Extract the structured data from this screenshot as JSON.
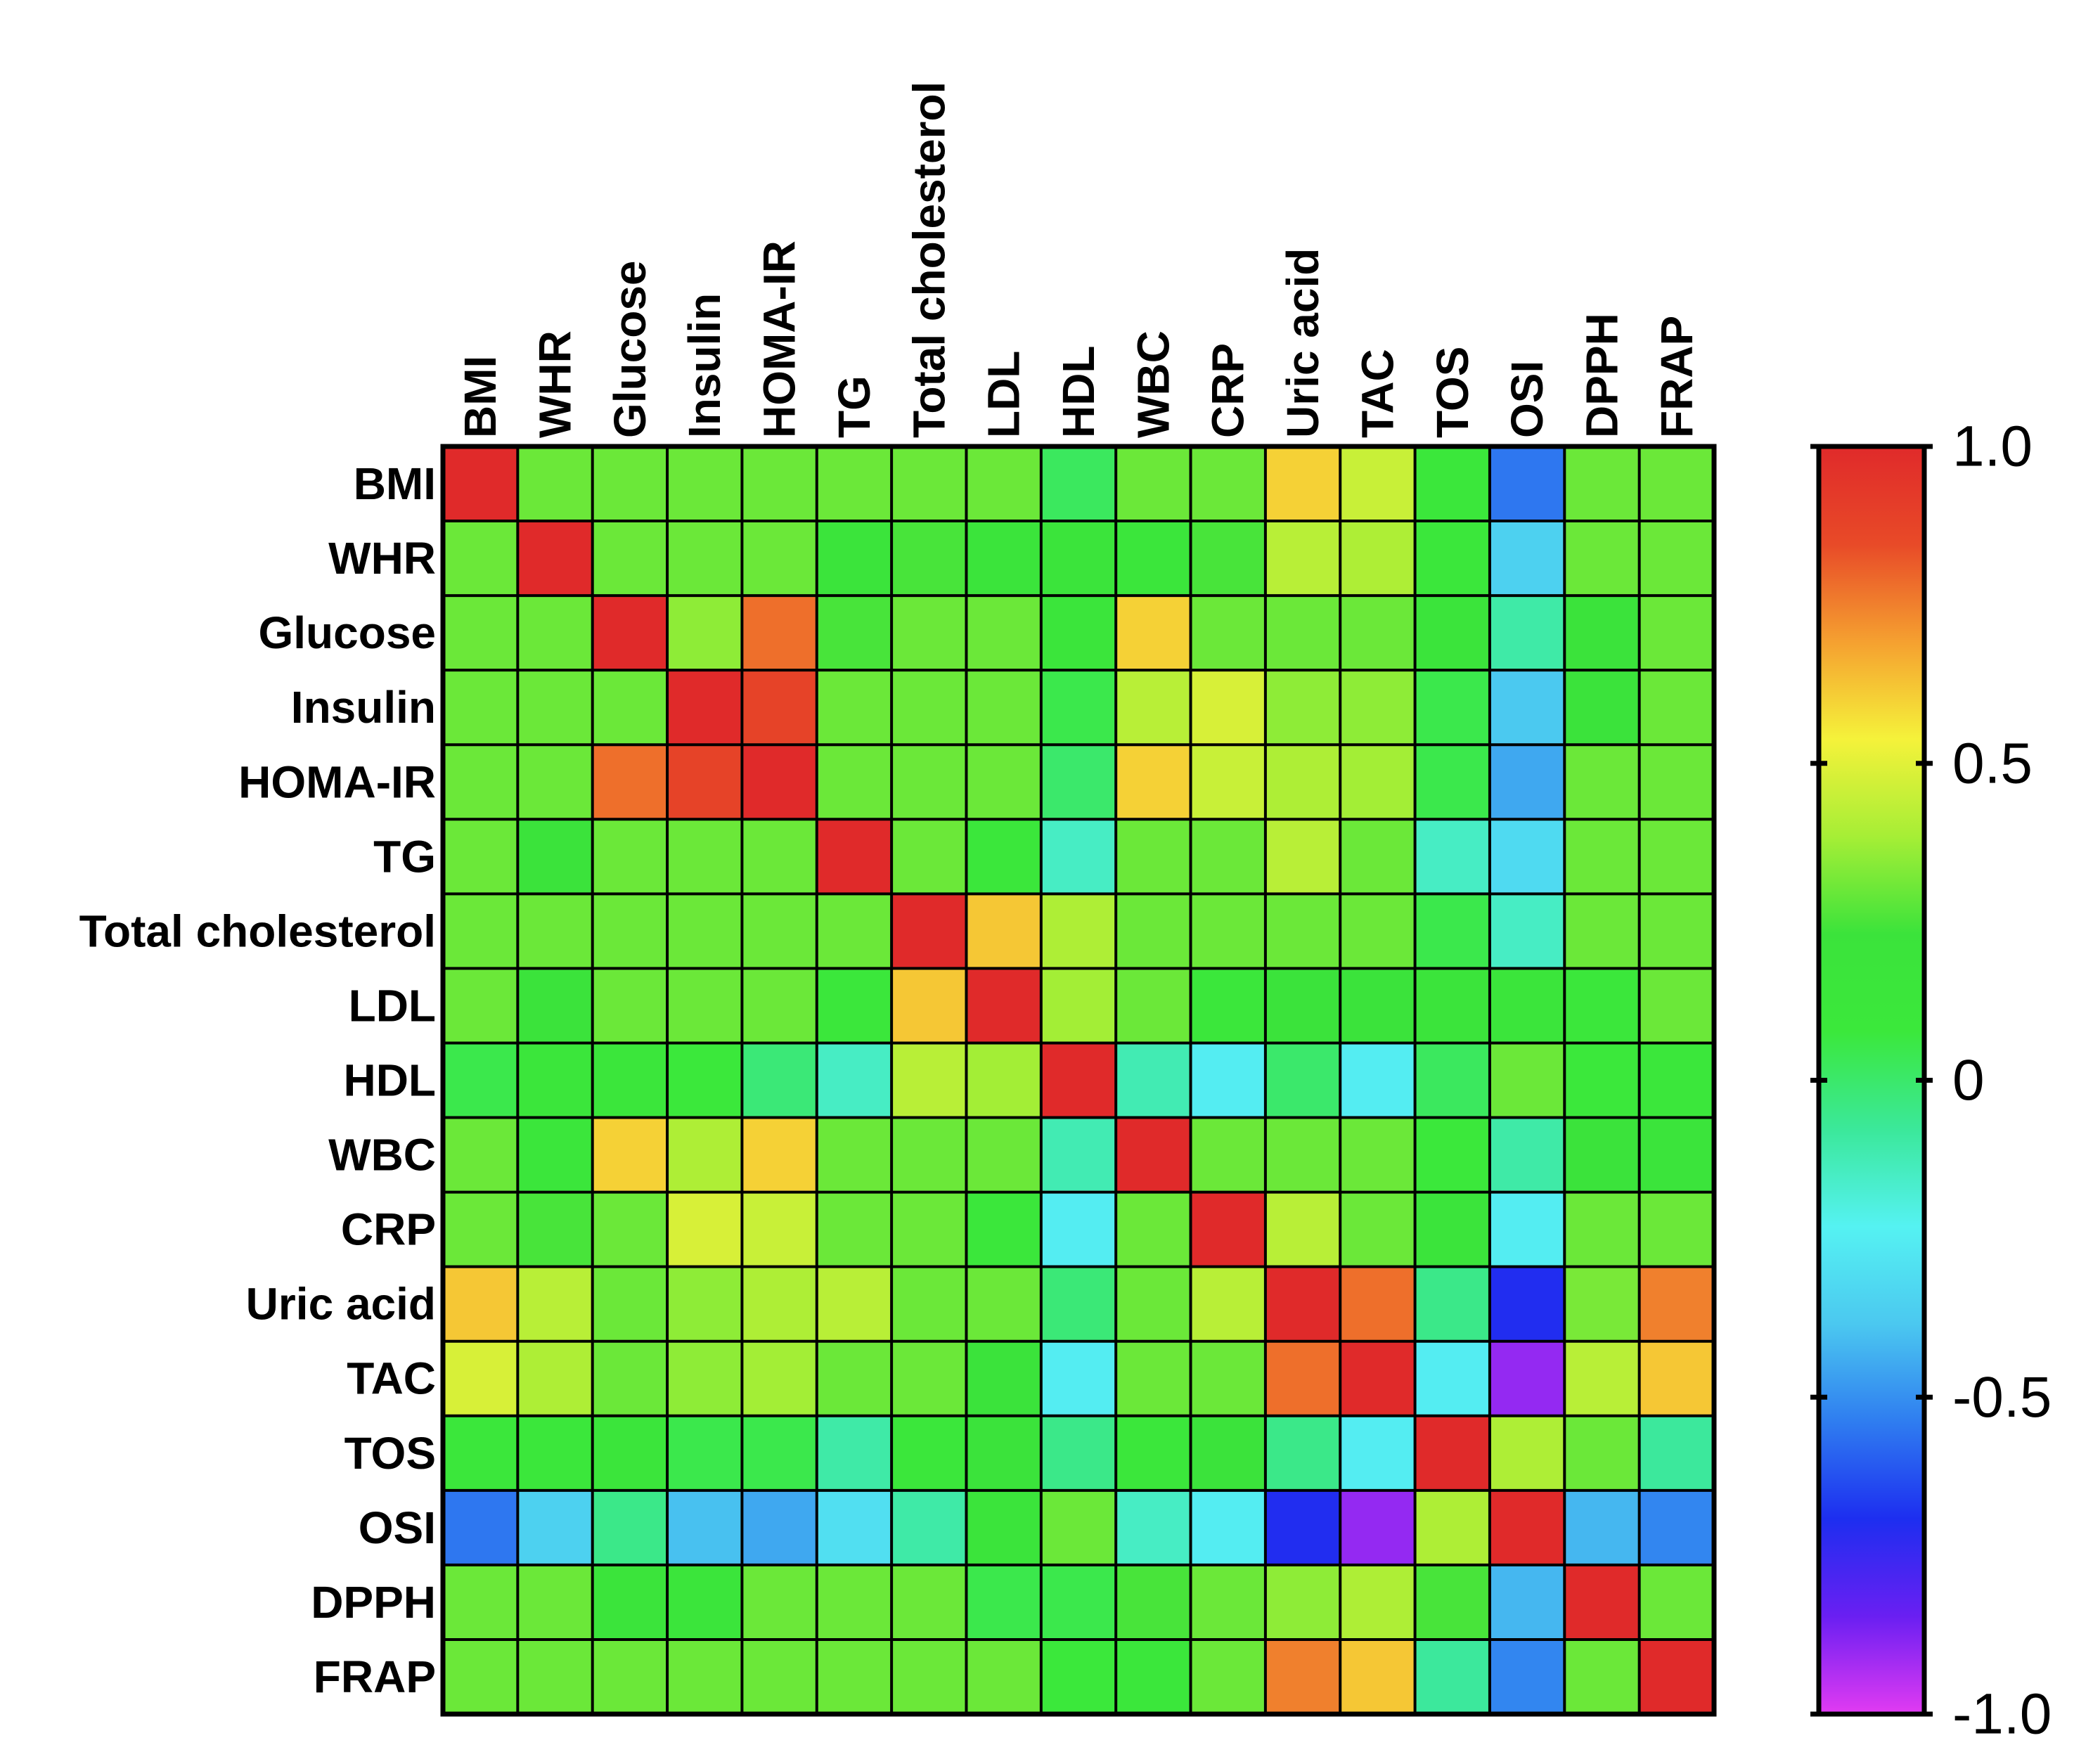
{
  "chart_data": {
    "type": "heatmap",
    "title": "",
    "row_labels": [
      "BMI",
      "WHR",
      "Glucose",
      "Insulin",
      "HOMA-IR",
      "TG",
      "Total cholesterol",
      "LDL",
      "HDL",
      "WBC",
      "CRP",
      "Uric acid",
      "TAC",
      "TOS",
      "OSI",
      "DPPH",
      "FRAP"
    ],
    "col_labels": [
      "BMI",
      "WHR",
      "Glucose",
      "Insulin",
      "HOMA-IR",
      "TG",
      "Total cholesterol",
      "LDL",
      "HDL",
      "WBC",
      "CRP",
      "Uric acid",
      "TAC",
      "TOS",
      "OSI",
      "DPPH",
      "FRAP"
    ],
    "values": [
      [
        1.0,
        0.3,
        0.3,
        0.3,
        0.3,
        0.3,
        0.3,
        0.3,
        0.02,
        0.3,
        0.3,
        0.6,
        0.45,
        0.1,
        -0.55,
        0.3,
        0.3
      ],
      [
        0.3,
        1.0,
        0.3,
        0.3,
        0.3,
        0.2,
        0.25,
        0.2,
        0.2,
        0.15,
        0.25,
        0.42,
        0.4,
        0.1,
        -0.35,
        0.3,
        0.3
      ],
      [
        0.3,
        0.3,
        1.0,
        0.35,
        0.78,
        0.25,
        0.3,
        0.3,
        0.18,
        0.6,
        0.3,
        0.3,
        0.3,
        0.2,
        -0.1,
        0.22,
        0.3
      ],
      [
        0.3,
        0.3,
        0.3,
        1.0,
        0.88,
        0.3,
        0.3,
        0.3,
        0.05,
        0.42,
        0.48,
        0.35,
        0.35,
        0.05,
        -0.38,
        0.22,
        0.3
      ],
      [
        0.3,
        0.3,
        0.78,
        0.88,
        1.0,
        0.3,
        0.3,
        0.3,
        0.0,
        0.6,
        0.45,
        0.4,
        0.38,
        0.05,
        -0.45,
        0.3,
        0.3
      ],
      [
        0.3,
        0.22,
        0.3,
        0.3,
        0.3,
        1.0,
        0.3,
        0.1,
        -0.15,
        0.3,
        0.3,
        0.42,
        0.3,
        -0.15,
        -0.32,
        0.3,
        0.3
      ],
      [
        0.3,
        0.3,
        0.3,
        0.3,
        0.3,
        0.3,
        1.0,
        0.62,
        0.4,
        0.3,
        0.3,
        0.3,
        0.3,
        0.05,
        -0.15,
        0.3,
        0.3
      ],
      [
        0.3,
        0.22,
        0.3,
        0.3,
        0.3,
        0.1,
        0.62,
        1.0,
        0.38,
        0.3,
        0.12,
        0.22,
        0.22,
        0.2,
        0.18,
        0.1,
        0.3
      ],
      [
        0.05,
        0.15,
        0.15,
        0.08,
        -0.02,
        -0.15,
        0.42,
        0.38,
        1.0,
        -0.12,
        -0.25,
        0.0,
        -0.25,
        0.02,
        0.3,
        0.08,
        0.1
      ],
      [
        0.3,
        0.15,
        0.6,
        0.4,
        0.6,
        0.3,
        0.3,
        0.3,
        -0.12,
        1.0,
        0.3,
        0.3,
        0.3,
        0.08,
        -0.1,
        0.22,
        0.2
      ],
      [
        0.3,
        0.25,
        0.3,
        0.48,
        0.45,
        0.3,
        0.3,
        0.12,
        -0.25,
        0.3,
        1.0,
        0.42,
        0.3,
        0.2,
        -0.25,
        0.3,
        0.3
      ],
      [
        0.62,
        0.42,
        0.3,
        0.35,
        0.4,
        0.42,
        0.3,
        0.3,
        -0.02,
        0.3,
        0.42,
        1.0,
        0.78,
        -0.05,
        -0.7,
        0.32,
        0.75
      ],
      [
        0.48,
        0.4,
        0.3,
        0.35,
        0.38,
        0.3,
        0.3,
        0.22,
        -0.25,
        0.3,
        0.3,
        0.78,
        1.0,
        -0.25,
        -0.9,
        0.42,
        0.62
      ],
      [
        0.1,
        0.1,
        0.18,
        0.05,
        0.05,
        -0.1,
        0.1,
        0.22,
        -0.05,
        0.1,
        0.22,
        -0.05,
        -0.25,
        1.0,
        0.4,
        0.3,
        -0.08
      ],
      [
        -0.55,
        -0.35,
        -0.05,
        -0.4,
        -0.45,
        -0.3,
        -0.1,
        0.2,
        0.3,
        -0.15,
        -0.25,
        -0.7,
        -0.9,
        0.4,
        1.0,
        -0.42,
        -0.52
      ],
      [
        0.3,
        0.3,
        0.2,
        0.18,
        0.3,
        0.3,
        0.3,
        0.05,
        0.05,
        0.25,
        0.3,
        0.35,
        0.4,
        0.25,
        -0.42,
        1.0,
        0.3
      ],
      [
        0.3,
        0.3,
        0.3,
        0.3,
        0.3,
        0.3,
        0.3,
        0.3,
        0.08,
        0.12,
        0.3,
        0.75,
        0.62,
        -0.08,
        -0.52,
        0.3,
        1.0
      ]
    ],
    "colorbar": {
      "range": [
        -1.0,
        1.0
      ],
      "tick_values": [
        1.0,
        0.5,
        0,
        -0.5,
        -1.0
      ],
      "tick_labels": [
        "1.0",
        "0.5",
        "0",
        "-0.5",
        "-1.0"
      ],
      "colors": [
        "#e23bf2",
        "#6a1ff2",
        "#1d2ef0",
        "#2f7df0",
        "#4bc8f0",
        "#55f2f2",
        "#3be89a",
        "#3be83b",
        "#3be33b",
        "#a6ee36",
        "#f5f23a",
        "#f5a030",
        "#e84a28",
        "#e02a2a"
      ]
    },
    "xlabel": "",
    "ylabel": ""
  }
}
